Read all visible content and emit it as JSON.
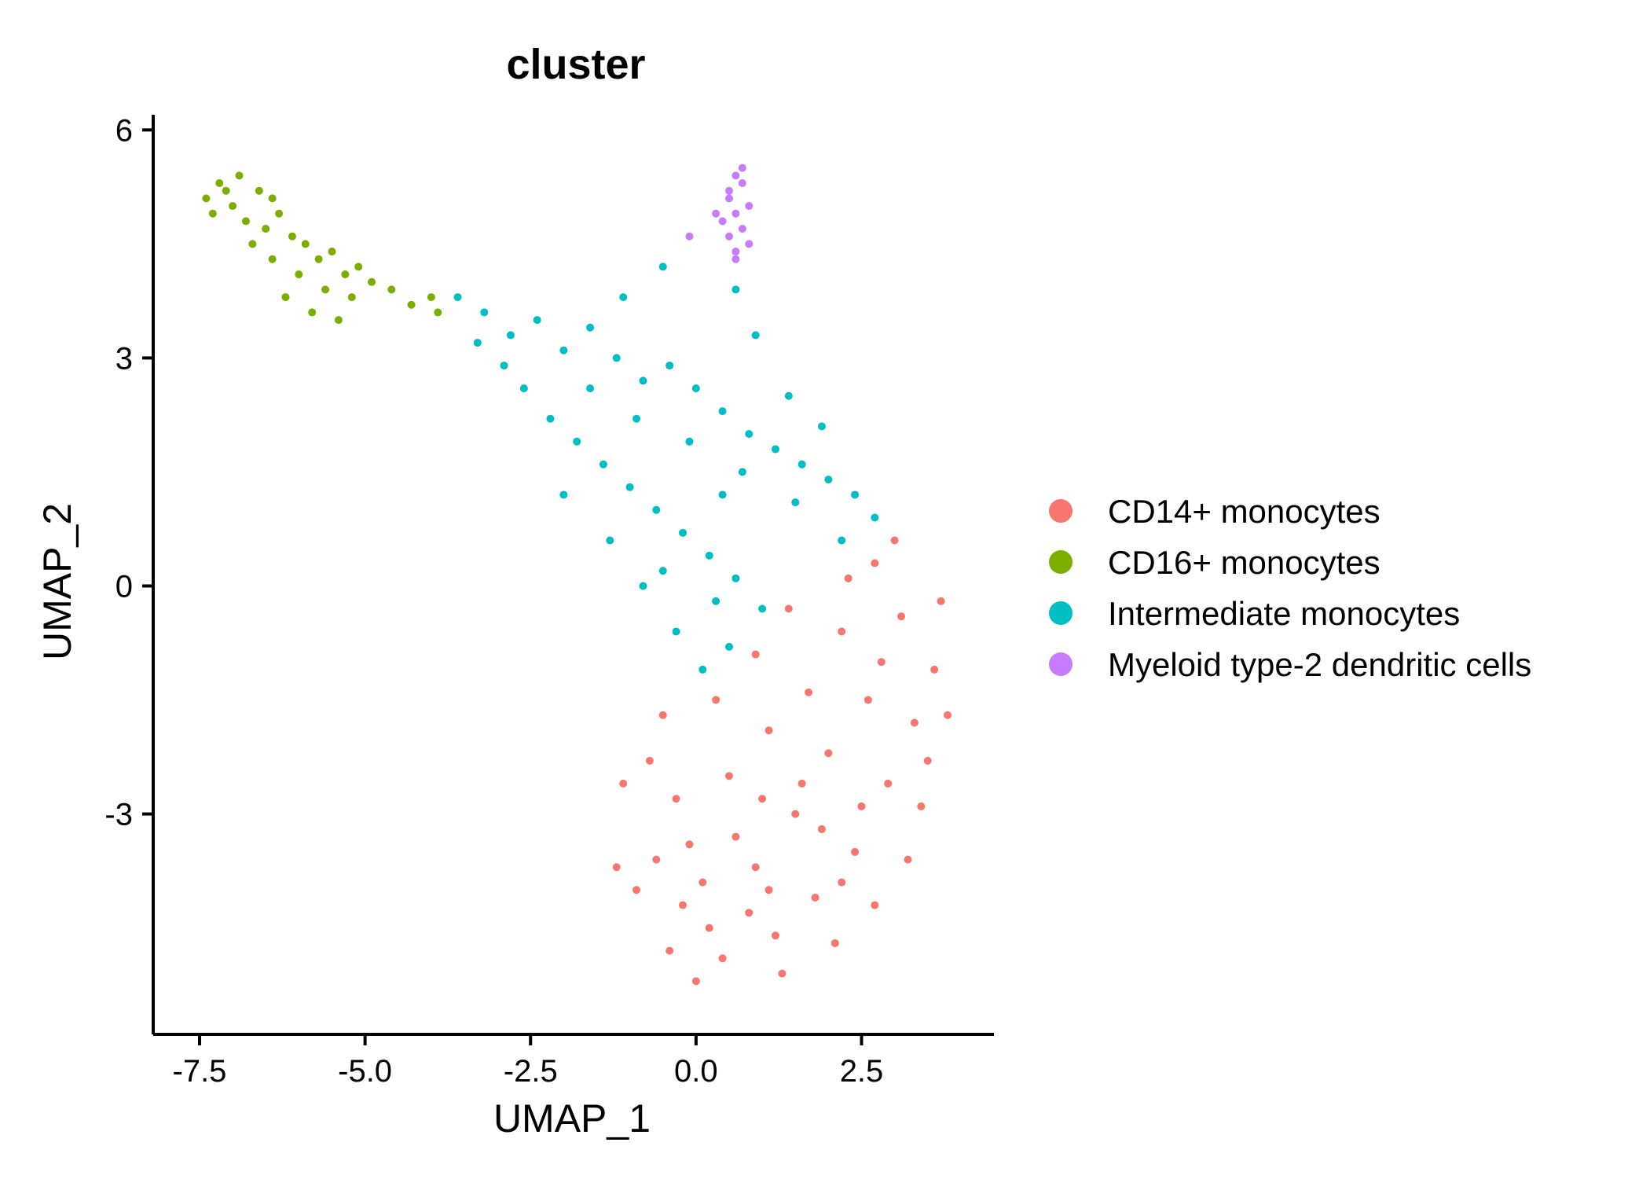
{
  "chart_data": {
    "type": "scatter",
    "title": "cluster",
    "xlabel": "UMAP_1",
    "ylabel": "UMAP_2",
    "xlim": [
      -8.2,
      4.5
    ],
    "ylim": [
      -5.9,
      6.2
    ],
    "xticks": [
      -7.5,
      -5.0,
      -2.5,
      0.0,
      2.5
    ],
    "xtick_labels": [
      "-7.5",
      "-5.0",
      "-2.5",
      "0.0",
      "2.5"
    ],
    "yticks": [
      -3,
      0,
      3,
      6
    ],
    "ytick_labels": [
      "-3",
      "0",
      "3",
      "6"
    ],
    "grid": false,
    "legend_position": "right",
    "series": [
      {
        "name": "CD14+ monocytes",
        "color": "#F8766D",
        "values": [
          [
            1.2,
            -4.6
          ],
          [
            0.4,
            -4.9
          ],
          [
            -0.2,
            -4.2
          ],
          [
            0.9,
            -3.7
          ],
          [
            1.8,
            -4.1
          ],
          [
            2.4,
            -3.5
          ],
          [
            1.5,
            -3.0
          ],
          [
            0.6,
            -3.3
          ],
          [
            -0.6,
            -3.6
          ],
          [
            -0.9,
            -4.0
          ],
          [
            0.1,
            -3.9
          ],
          [
            2.9,
            -2.6
          ],
          [
            3.3,
            -1.8
          ],
          [
            3.6,
            -1.1
          ],
          [
            3.1,
            -0.4
          ],
          [
            2.7,
            0.3
          ],
          [
            2.2,
            -0.6
          ],
          [
            1.7,
            -1.4
          ],
          [
            1.1,
            -1.9
          ],
          [
            0.5,
            -2.5
          ],
          [
            -0.3,
            -2.8
          ],
          [
            -0.7,
            -2.3
          ],
          [
            2.0,
            -2.2
          ],
          [
            2.6,
            -1.5
          ],
          [
            3.4,
            -2.9
          ],
          [
            3.8,
            -1.7
          ],
          [
            3.0,
            0.6
          ],
          [
            2.3,
            0.1
          ],
          [
            1.4,
            -0.3
          ],
          [
            0.9,
            -0.9
          ],
          [
            0.3,
            -1.5
          ],
          [
            -0.5,
            -1.7
          ],
          [
            -1.1,
            -2.6
          ],
          [
            -1.2,
            -3.7
          ],
          [
            0.0,
            -5.2
          ],
          [
            1.3,
            -5.1
          ],
          [
            2.1,
            -4.7
          ],
          [
            2.7,
            -4.2
          ],
          [
            3.2,
            -3.6
          ],
          [
            3.7,
            -0.2
          ],
          [
            1.6,
            -2.6
          ],
          [
            2.5,
            -2.9
          ],
          [
            0.8,
            -4.3
          ],
          [
            -0.1,
            -3.4
          ],
          [
            1.9,
            -3.2
          ],
          [
            2.8,
            -1.0
          ],
          [
            1.0,
            -2.8
          ],
          [
            0.2,
            -4.5
          ],
          [
            -0.4,
            -4.8
          ],
          [
            3.5,
            -2.3
          ],
          [
            2.2,
            -3.9
          ],
          [
            1.1,
            -4.0
          ]
        ]
      },
      {
        "name": "CD16+ monocytes",
        "color": "#7CAE00",
        "values": [
          [
            -7.4,
            5.1
          ],
          [
            -7.2,
            5.3
          ],
          [
            -7.0,
            5.0
          ],
          [
            -6.8,
            4.8
          ],
          [
            -6.6,
            5.2
          ],
          [
            -6.9,
            5.4
          ],
          [
            -7.3,
            4.9
          ],
          [
            -6.5,
            4.7
          ],
          [
            -6.3,
            4.9
          ],
          [
            -6.1,
            4.6
          ],
          [
            -5.9,
            4.5
          ],
          [
            -5.7,
            4.3
          ],
          [
            -5.5,
            4.4
          ],
          [
            -5.3,
            4.1
          ],
          [
            -5.6,
            3.9
          ],
          [
            -6.0,
            4.1
          ],
          [
            -6.4,
            4.3
          ],
          [
            -5.1,
            4.2
          ],
          [
            -4.9,
            4.0
          ],
          [
            -4.6,
            3.9
          ],
          [
            -4.3,
            3.7
          ],
          [
            -4.0,
            3.8
          ],
          [
            -3.9,
            3.6
          ],
          [
            -6.2,
            3.8
          ],
          [
            -5.8,
            3.6
          ],
          [
            -5.4,
            3.5
          ],
          [
            -6.7,
            4.5
          ],
          [
            -7.1,
            5.2
          ],
          [
            -6.4,
            5.1
          ],
          [
            -5.2,
            3.8
          ]
        ]
      },
      {
        "name": "Intermediate monocytes",
        "color": "#00BFC4",
        "values": [
          [
            -3.6,
            3.8
          ],
          [
            -3.2,
            3.6
          ],
          [
            -2.8,
            3.3
          ],
          [
            -2.4,
            3.5
          ],
          [
            -2.0,
            3.1
          ],
          [
            -1.6,
            3.4
          ],
          [
            -1.2,
            3.0
          ],
          [
            -0.8,
            2.7
          ],
          [
            -0.4,
            2.9
          ],
          [
            0.0,
            2.6
          ],
          [
            0.4,
            2.3
          ],
          [
            0.8,
            2.0
          ],
          [
            1.2,
            1.8
          ],
          [
            1.6,
            1.6
          ],
          [
            2.0,
            1.4
          ],
          [
            2.4,
            1.2
          ],
          [
            2.7,
            0.9
          ],
          [
            -2.6,
            2.6
          ],
          [
            -2.2,
            2.2
          ],
          [
            -1.8,
            1.9
          ],
          [
            -1.4,
            1.6
          ],
          [
            -1.0,
            1.3
          ],
          [
            -0.6,
            1.0
          ],
          [
            -0.2,
            0.7
          ],
          [
            0.2,
            0.4
          ],
          [
            0.6,
            0.1
          ],
          [
            1.0,
            -0.3
          ],
          [
            0.5,
            -0.8
          ],
          [
            0.1,
            -1.1
          ],
          [
            -0.3,
            -0.6
          ],
          [
            -1.6,
            2.6
          ],
          [
            -0.9,
            2.2
          ],
          [
            -0.1,
            1.9
          ],
          [
            0.7,
            1.5
          ],
          [
            1.5,
            1.1
          ],
          [
            2.2,
            0.6
          ],
          [
            -2.0,
            1.2
          ],
          [
            -1.3,
            0.6
          ],
          [
            -0.5,
            0.2
          ],
          [
            0.3,
            -0.2
          ],
          [
            0.9,
            3.3
          ],
          [
            0.6,
            3.9
          ],
          [
            -0.5,
            4.2
          ],
          [
            -1.1,
            3.8
          ],
          [
            1.4,
            2.5
          ],
          [
            -2.9,
            2.9
          ],
          [
            -0.8,
            0.0
          ],
          [
            -3.3,
            3.2
          ],
          [
            1.9,
            2.1
          ],
          [
            0.4,
            1.2
          ]
        ]
      },
      {
        "name": "Myeloid type-2 dendritic cells",
        "color": "#C77CFF",
        "values": [
          [
            0.6,
            5.4
          ],
          [
            0.7,
            5.3
          ],
          [
            0.5,
            5.1
          ],
          [
            0.8,
            5.0
          ],
          [
            0.6,
            4.9
          ],
          [
            0.4,
            4.8
          ],
          [
            0.7,
            4.7
          ],
          [
            0.5,
            4.6
          ],
          [
            0.8,
            4.5
          ],
          [
            0.6,
            4.4
          ],
          [
            0.7,
            5.5
          ],
          [
            0.5,
            5.2
          ],
          [
            0.3,
            4.9
          ],
          [
            -0.1,
            4.6
          ],
          [
            0.6,
            4.3
          ]
        ]
      }
    ]
  }
}
